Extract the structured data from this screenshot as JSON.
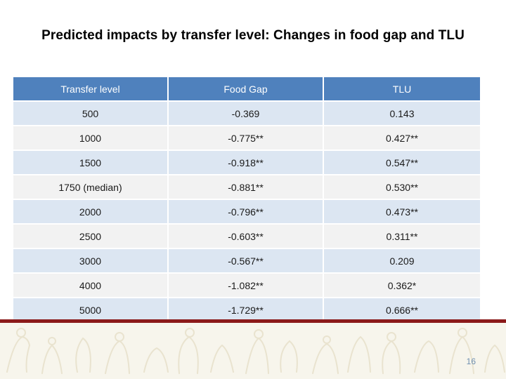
{
  "title": "Predicted impacts by transfer level: Changes in food gap and TLU",
  "table": {
    "headers": [
      "Transfer level",
      "Food Gap",
      "TLU"
    ],
    "rows": [
      [
        "500",
        "-0.369",
        "0.143"
      ],
      [
        "1000",
        "-0.775**",
        "0.427**"
      ],
      [
        "1500",
        "-0.918**",
        "0.547**"
      ],
      [
        "1750 (median)",
        "-0.881**",
        "0.530**"
      ],
      [
        "2000",
        "-0.796**",
        "0.473**"
      ],
      [
        "2500",
        "-0.603**",
        "0.311**"
      ],
      [
        "3000",
        "-0.567**",
        "0.209"
      ],
      [
        "4000",
        "-1.082**",
        "0.362*"
      ],
      [
        "5000",
        "-1.729**",
        "0.666**"
      ]
    ]
  },
  "colors": {
    "header_bg": "#4f81bd",
    "row_odd": "#dce6f2",
    "row_even": "#f2f2f2",
    "footer_rule": "#8b1a1a"
  },
  "slide_number": "16"
}
